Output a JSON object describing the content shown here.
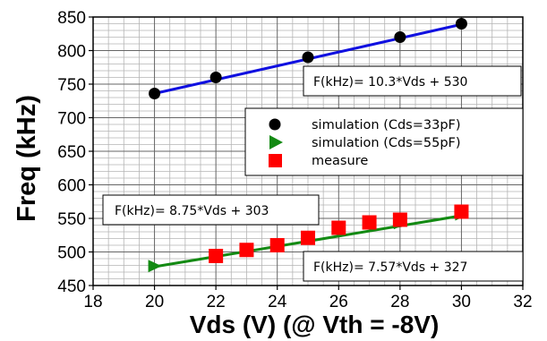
{
  "chart_data": {
    "type": "scatter",
    "xlabel": "Vds (V) (@ Vth = -8V)",
    "ylabel": "Freq (kHz)",
    "xlim": [
      18,
      32
    ],
    "ylim": [
      450,
      850
    ],
    "x_ticks": [
      "18",
      "20",
      "22",
      "24",
      "26",
      "28",
      "30",
      "32"
    ],
    "y_ticks": [
      "450",
      "500",
      "550",
      "600",
      "650",
      "700",
      "750",
      "800",
      "850"
    ],
    "grid": true,
    "legend_position": "right",
    "series": [
      {
        "name": "simulation (Cds=33pF)",
        "marker": "circle",
        "color": "#000000",
        "x": [
          20,
          22,
          25,
          28,
          30
        ],
        "y": [
          736,
          760,
          790,
          820,
          840
        ]
      },
      {
        "name": "simulation (Cds=55pF)",
        "marker": "triangle-right",
        "color": "#138a13",
        "x": [
          20,
          22,
          25,
          28,
          30
        ],
        "y": [
          479,
          493,
          520,
          543,
          556
        ]
      },
      {
        "name": "measure",
        "marker": "square",
        "color": "#ff0000",
        "x": [
          22,
          23,
          24,
          25,
          26,
          27,
          28,
          30
        ],
        "y": [
          494,
          503,
          510,
          521,
          536,
          544,
          548,
          560
        ]
      }
    ],
    "fit_lines": [
      {
        "label": "F(kHz)= 10.3*Vds + 530",
        "x": [
          20,
          30
        ],
        "y": [
          736,
          839
        ],
        "color": "#1010e0"
      },
      {
        "label": "F(kHz)= 7.57*Vds + 327",
        "x": [
          20,
          30
        ],
        "y": [
          478,
          554
        ],
        "color": "#138a13"
      }
    ],
    "annotations": [
      "F(kHz)= 10.3*Vds + 530",
      "F(kHz)= 8.75*Vds + 303",
      "F(kHz)= 7.57*Vds + 327"
    ]
  }
}
